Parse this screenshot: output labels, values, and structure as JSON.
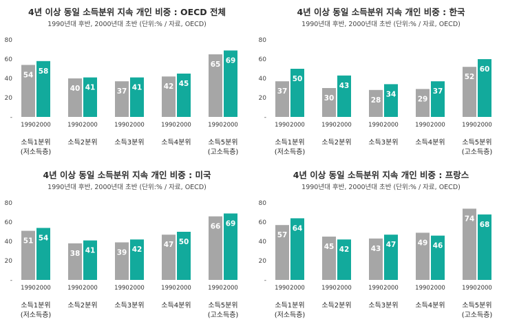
{
  "chart_data": [
    {
      "type": "bar",
      "title": "4년 이상 동일 소득분위 지속 개인 비중 : OECD 전체",
      "subtitle": "1990년대 후반, 2000년대 초반 (단위:% / 자료, OECD)",
      "categories": [
        [
          "소득1분위",
          "(저소득층)"
        ],
        [
          "소득2분위"
        ],
        [
          "소득3분위"
        ],
        [
          "소득4분위"
        ],
        [
          "소득5분위",
          "(고소득층)"
        ]
      ],
      "series": [
        {
          "name": "1990",
          "color": "#a6a6a6",
          "values": [
            54,
            40,
            37,
            42,
            65
          ]
        },
        {
          "name": "2000",
          "color": "#12aa9c",
          "values": [
            58,
            41,
            41,
            45,
            69
          ]
        }
      ],
      "ylim": [
        0,
        80
      ],
      "yticks": [
        0,
        20,
        40,
        60,
        80
      ],
      "ytick_labels": [
        "-",
        "20",
        "40",
        "60",
        "80"
      ]
    },
    {
      "type": "bar",
      "title": "4년 이상 동일 소득분위 지속 개인 비중 : 한국",
      "subtitle": "1990년대 후반, 2000년대 초반 (단위:% / 자료, OECD)",
      "categories": [
        [
          "소득1분위",
          "(저소득층)"
        ],
        [
          "소득2분위"
        ],
        [
          "소득3분위"
        ],
        [
          "소득4분위"
        ],
        [
          "소득5분위",
          "(고소득층)"
        ]
      ],
      "series": [
        {
          "name": "1990",
          "color": "#a6a6a6",
          "values": [
            37,
            30,
            28,
            29,
            52
          ]
        },
        {
          "name": "2000",
          "color": "#12aa9c",
          "values": [
            50,
            43,
            34,
            37,
            60
          ]
        }
      ],
      "ylim": [
        0,
        80
      ],
      "yticks": [
        0,
        20,
        40,
        60,
        80
      ],
      "ytick_labels": [
        "-",
        "20",
        "40",
        "60",
        "80"
      ]
    },
    {
      "type": "bar",
      "title": "4년 이상 동일 소득분위 지속 개인 비중 : 미국",
      "subtitle": "1990년대 후반, 2000년대 초반 (단위:% / 자료, OECD)",
      "categories": [
        [
          "소득1분위",
          "(저소득층)"
        ],
        [
          "소득2분위"
        ],
        [
          "소득3분위"
        ],
        [
          "소득4분위"
        ],
        [
          "소득5분위",
          "(고소득층)"
        ]
      ],
      "series": [
        {
          "name": "1990",
          "color": "#a6a6a6",
          "values": [
            51,
            38,
            39,
            47,
            66
          ]
        },
        {
          "name": "2000",
          "color": "#12aa9c",
          "values": [
            54,
            41,
            42,
            50,
            69
          ]
        }
      ],
      "ylim": [
        0,
        80
      ],
      "yticks": [
        0,
        20,
        40,
        60,
        80
      ],
      "ytick_labels": [
        "-",
        "20",
        "40",
        "60",
        "80"
      ]
    },
    {
      "type": "bar",
      "title": "4년 이상 동일 소득분위 지속 개인 비중 : 프랑스",
      "subtitle": "1990년대 후반, 2000년대 초반 (단위:% / 자료, OECD)",
      "categories": [
        [
          "소득1분위",
          "(저소득층)"
        ],
        [
          "소득2분위"
        ],
        [
          "소득3분위"
        ],
        [
          "소득4분위"
        ],
        [
          "소득5분위",
          "(고소득층)"
        ]
      ],
      "series": [
        {
          "name": "1990",
          "color": "#a6a6a6",
          "values": [
            57,
            45,
            43,
            49,
            74
          ]
        },
        {
          "name": "2000",
          "color": "#12aa9c",
          "values": [
            64,
            42,
            47,
            46,
            68
          ]
        }
      ],
      "ylim": [
        0,
        80
      ],
      "yticks": [
        0,
        20,
        40,
        60,
        80
      ],
      "ytick_labels": [
        "-",
        "20",
        "40",
        "60",
        "80"
      ]
    }
  ]
}
